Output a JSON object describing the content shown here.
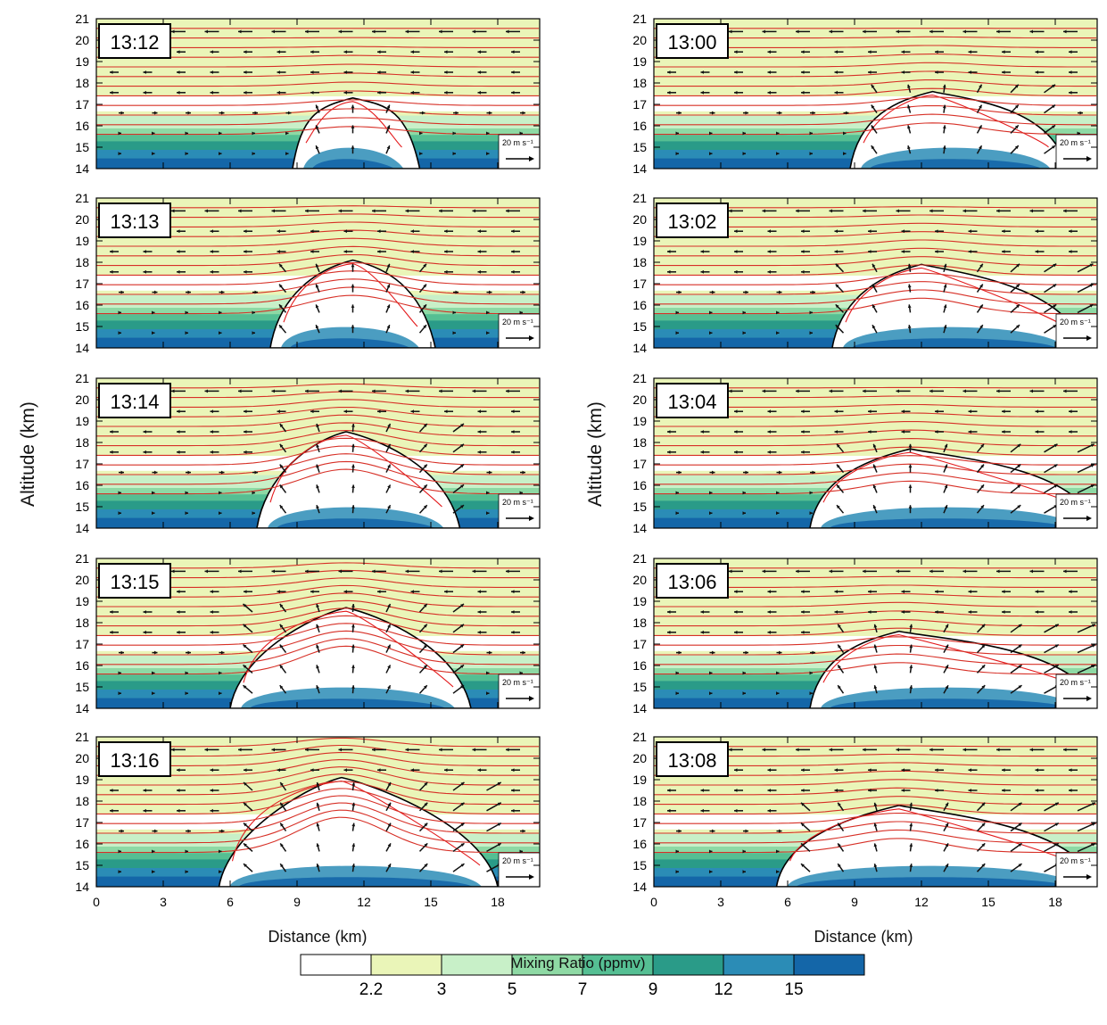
{
  "figure": {
    "y_axis_label": "Altitude (km)",
    "x_axis_label": "Distance (km)",
    "colorbar": {
      "title": "Mixing Ratio (ppmv)",
      "tick_labels": [
        "2.2",
        "3",
        "5",
        "7",
        "9",
        "12",
        "15"
      ],
      "colors": [
        "#ffffff",
        "#eaf5b8",
        "#c8f0c8",
        "#8ed9a4",
        "#55bf93",
        "#2a9b88",
        "#2b8cb6",
        "#1466a8"
      ]
    },
    "reference_vector_label": "20 m s⁻¹",
    "colors": {
      "streamline": "#d73027",
      "contour_outline": "#000000",
      "ice_contour": "#e31a1c",
      "vector": "#111111"
    }
  },
  "chart_data": [
    {
      "type": "heatmap",
      "panel": "left-1",
      "time_label": "13:12",
      "x": [
        0,
        3,
        6,
        9,
        12,
        15,
        18
      ],
      "ylim": [
        14,
        21
      ],
      "y_ticks": [
        14,
        15,
        16,
        17,
        18,
        19,
        20,
        21
      ],
      "x_range_km": [
        0,
        20
      ],
      "plume": {
        "x_start_km": 8.8,
        "x_end_km": 14.5,
        "top_km": 17.3,
        "peak_x_km": 11.5
      }
    },
    {
      "type": "heatmap",
      "panel": "left-2",
      "time_label": "13:13",
      "x": [
        0,
        3,
        6,
        9,
        12,
        15,
        18
      ],
      "ylim": [
        14,
        21
      ],
      "y_ticks": [
        14,
        15,
        16,
        17,
        18,
        19,
        20,
        21
      ],
      "x_range_km": [
        0,
        20
      ],
      "plume": {
        "x_start_km": 7.8,
        "x_end_km": 15.2,
        "top_km": 18.1,
        "peak_x_km": 11.5
      }
    },
    {
      "type": "heatmap",
      "panel": "left-3",
      "time_label": "13:14",
      "x": [
        0,
        3,
        6,
        9,
        12,
        15,
        18
      ],
      "ylim": [
        14,
        21
      ],
      "y_ticks": [
        14,
        15,
        16,
        17,
        18,
        19,
        20,
        21
      ],
      "x_range_km": [
        0,
        20
      ],
      "plume": {
        "x_start_km": 7.2,
        "x_end_km": 16.3,
        "top_km": 18.5,
        "peak_x_km": 11.2
      }
    },
    {
      "type": "heatmap",
      "panel": "left-4",
      "time_label": "13:15",
      "x": [
        0,
        3,
        6,
        9,
        12,
        15,
        18
      ],
      "ylim": [
        14,
        21
      ],
      "y_ticks": [
        14,
        15,
        16,
        17,
        18,
        19,
        20,
        21
      ],
      "x_range_km": [
        0,
        20
      ],
      "plume": {
        "x_start_km": 6.0,
        "x_end_km": 16.8,
        "top_km": 18.7,
        "peak_x_km": 11.2
      }
    },
    {
      "type": "heatmap",
      "panel": "left-5",
      "time_label": "13:16",
      "x": [
        0,
        3,
        6,
        9,
        12,
        15,
        18
      ],
      "ylim": [
        14,
        21
      ],
      "y_ticks": [
        14,
        15,
        16,
        17,
        18,
        19,
        20,
        21
      ],
      "x_range_km": [
        0,
        20
      ],
      "plume": {
        "x_start_km": 5.5,
        "x_end_km": 18.0,
        "top_km": 19.1,
        "peak_x_km": 11.0
      }
    },
    {
      "type": "heatmap",
      "panel": "right-1",
      "time_label": "13:00",
      "x": [
        0,
        3,
        6,
        9,
        12,
        15,
        18
      ],
      "ylim": [
        14,
        21
      ],
      "y_ticks": [
        14,
        15,
        16,
        17,
        18,
        19,
        20,
        21
      ],
      "x_range_km": [
        0,
        20
      ],
      "plume": {
        "x_start_km": 8.8,
        "x_end_km": 18.5,
        "top_km": 17.6,
        "peak_x_km": 12.5
      }
    },
    {
      "type": "heatmap",
      "panel": "right-2",
      "time_label": "13:02",
      "x": [
        0,
        3,
        6,
        9,
        12,
        15,
        18
      ],
      "ylim": [
        14,
        21
      ],
      "y_ticks": [
        14,
        15,
        16,
        17,
        18,
        19,
        20,
        21
      ],
      "x_range_km": [
        0,
        20
      ],
      "plume": {
        "x_start_km": 8.0,
        "x_end_km": 19.2,
        "top_km": 17.9,
        "peak_x_km": 12.0
      }
    },
    {
      "type": "heatmap",
      "panel": "right-3",
      "time_label": "13:04",
      "x": [
        0,
        3,
        6,
        9,
        12,
        15,
        18
      ],
      "ylim": [
        14,
        21
      ],
      "y_ticks": [
        14,
        15,
        16,
        17,
        18,
        19,
        20,
        21
      ],
      "x_range_km": [
        0,
        20
      ],
      "plume": {
        "x_start_km": 7.0,
        "x_end_km": 19.8,
        "top_km": 17.7,
        "peak_x_km": 11.5
      }
    },
    {
      "type": "heatmap",
      "panel": "right-4",
      "time_label": "13:06",
      "x": [
        0,
        3,
        6,
        9,
        12,
        15,
        18
      ],
      "ylim": [
        14,
        21
      ],
      "y_ticks": [
        14,
        15,
        16,
        17,
        18,
        19,
        20,
        21
      ],
      "x_range_km": [
        0,
        20
      ],
      "plume": {
        "x_start_km": 7.0,
        "x_end_km": 19.8,
        "top_km": 17.6,
        "peak_x_km": 11.0
      }
    },
    {
      "type": "heatmap",
      "panel": "right-5",
      "time_label": "13:08",
      "x": [
        0,
        3,
        6,
        9,
        12,
        15,
        18
      ],
      "ylim": [
        14,
        21
      ],
      "y_ticks": [
        14,
        15,
        16,
        17,
        18,
        19,
        20,
        21
      ],
      "x_range_km": [
        0,
        20
      ],
      "plume": {
        "x_start_km": 5.5,
        "x_end_km": 19.8,
        "top_km": 17.8,
        "peak_x_km": 11.0
      }
    }
  ]
}
